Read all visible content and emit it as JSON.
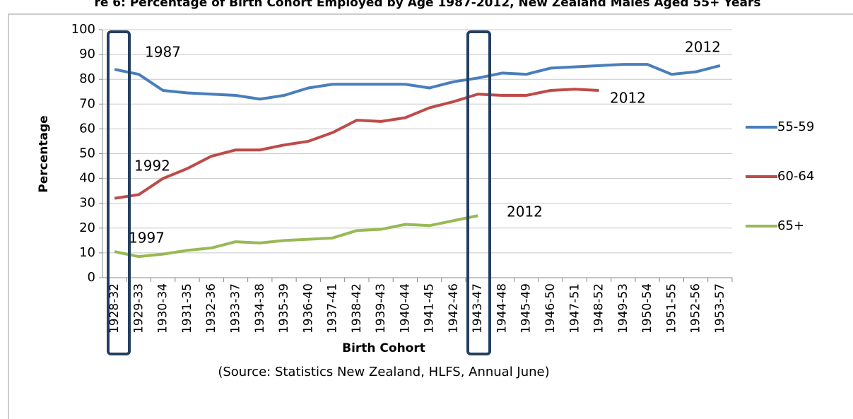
{
  "chart_data": {
    "type": "line",
    "title": "re 6: Percentage of Birth Cohort Employed by Age 1987-2012, New Zealand Males Aged 55+ Years",
    "y_label": "Percentage",
    "x_label": "Birth Cohort",
    "source": "(Source: Statistics New Zealand, HLFS, Annual June)",
    "categories": [
      "1928-32",
      "1929-33",
      "1930-34",
      "1931-35",
      "1932-36",
      "1933-37",
      "1934-38",
      "1935-39",
      "1936-40",
      "1937-41",
      "1938-42",
      "1939-43",
      "1940-44",
      "1941-45",
      "1942-46",
      "1943-47",
      "1944-48",
      "1945-49",
      "1946-50",
      "1947-51",
      "1948-52",
      "1949-53",
      "1950-54",
      "1951-55",
      "1952-56",
      "1953-57"
    ],
    "series": [
      {
        "name": "55-59",
        "color": "#4a7ebb",
        "values": [
          84,
          82,
          75.5,
          74.5,
          74,
          73.5,
          72,
          73.5,
          76.5,
          78,
          78,
          78,
          78,
          76.5,
          79,
          80.5,
          82.5,
          82,
          84.5,
          85,
          85.5,
          86,
          86,
          82,
          83,
          85.5
        ]
      },
      {
        "name": "60-64",
        "color": "#be4b48",
        "values": [
          32,
          33.5,
          40,
          44,
          49,
          51.5,
          51.5,
          53.5,
          55,
          58.5,
          63.5,
          63,
          64.5,
          68.5,
          71,
          74,
          73.5,
          73.5,
          75.5,
          76,
          75.5,
          null,
          null,
          null,
          null,
          null
        ]
      },
      {
        "name": "65+",
        "color": "#98b954",
        "values": [
          10.5,
          8.5,
          9.5,
          11,
          12,
          14.5,
          14,
          15,
          15.5,
          16,
          19,
          19.5,
          21.5,
          21,
          23,
          25,
          null,
          null,
          null,
          null,
          null,
          null,
          null,
          null,
          null,
          null
        ]
      }
    ],
    "annotations": [
      "1987",
      "1992",
      "1997",
      "2012",
      "2012",
      "2012"
    ],
    "ylim": [
      0,
      100
    ],
    "yticks": [
      0,
      10,
      20,
      30,
      40,
      50,
      60,
      70,
      80,
      90,
      100
    ],
    "grid": true,
    "legend": "right"
  }
}
